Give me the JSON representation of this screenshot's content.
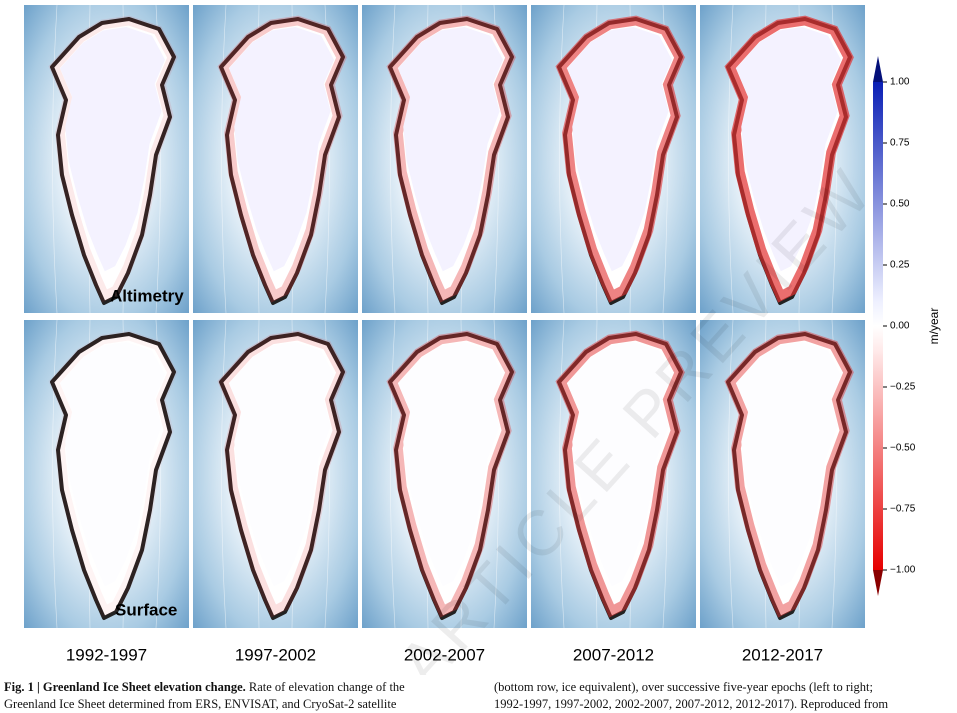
{
  "figure": {
    "rows": [
      "Altimetry",
      "Surface"
    ],
    "epochs": [
      "1992-1997",
      "1997-2002",
      "2002-2007",
      "2007-2012",
      "2012-2017"
    ],
    "colorbar": {
      "label": "m/year",
      "ylim": [
        -1,
        1
      ],
      "yticks": [
        {
          "value": 1,
          "label": "1.00"
        },
        {
          "value": 0.75,
          "label": "0.75"
        },
        {
          "value": 0.5,
          "label": "0.50"
        },
        {
          "value": 0.25,
          "label": "0.25"
        },
        {
          "value": 0,
          "label": "0.00"
        },
        {
          "value": -0.25,
          "label": "−0.25"
        },
        {
          "value": -0.5,
          "label": "−0.50"
        },
        {
          "value": -0.75,
          "label": "−0.75"
        },
        {
          "value": -1,
          "label": "−1.00"
        }
      ]
    },
    "watermark": "ARTICLE PREVIEW"
  },
  "caption": {
    "bold": "Fig. 1 | Greenland Ice Sheet elevation change.",
    "left": [
      "Rate of elevation change of the",
      "Greenland Ice Sheet determined from ERS, ENVISAT, and CryoSat-2 satellite"
    ],
    "right": [
      "(bottom row, ice equivalent), over successive five-year epochs (left to right;",
      "1992-1997, 1997-2002, 2002-2007, 2007-2012, 2012-2017). Reproduced from"
    ]
  }
}
